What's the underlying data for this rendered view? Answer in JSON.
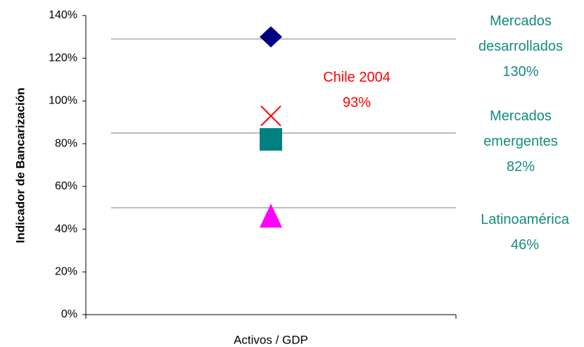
{
  "chart_data": {
    "type": "scatter",
    "y_axis_label": "Indicador de Bancarización",
    "categories": [
      "Activos / GDP"
    ],
    "ylim": [
      0,
      140
    ],
    "yticks": [
      {
        "value": 0,
        "label": "0%"
      },
      {
        "value": 20,
        "label": "20%"
      },
      {
        "value": 40,
        "label": "40%"
      },
      {
        "value": 60,
        "label": "60%"
      },
      {
        "value": 80,
        "label": "80%"
      },
      {
        "value": 100,
        "label": "100%"
      },
      {
        "value": 120,
        "label": "120%"
      },
      {
        "value": 140,
        "label": "140%"
      }
    ],
    "reference_lines": [
      129,
      85,
      50
    ],
    "series": [
      {
        "name": "Mercados desarrollados",
        "color": "#000080",
        "marker": "diamond",
        "label_color": "#168a80",
        "values": [
          130
        ],
        "value_labels": [
          "130%"
        ]
      },
      {
        "name": "Chile 2004",
        "color": "#ff0000",
        "marker": "x",
        "label_color": "#ff0000",
        "values": [
          93
        ],
        "value_labels": [
          "93%"
        ]
      },
      {
        "name": "Mercados emergentes",
        "color": "#008080",
        "marker": "square",
        "label_color": "#168a80",
        "values": [
          82
        ],
        "value_labels": [
          "82%"
        ]
      },
      {
        "name": "Latinoamérica",
        "color": "#ff00ff",
        "marker": "triangle",
        "label_color": "#168a80",
        "values": [
          46
        ],
        "value_labels": [
          "46%"
        ]
      }
    ]
  }
}
